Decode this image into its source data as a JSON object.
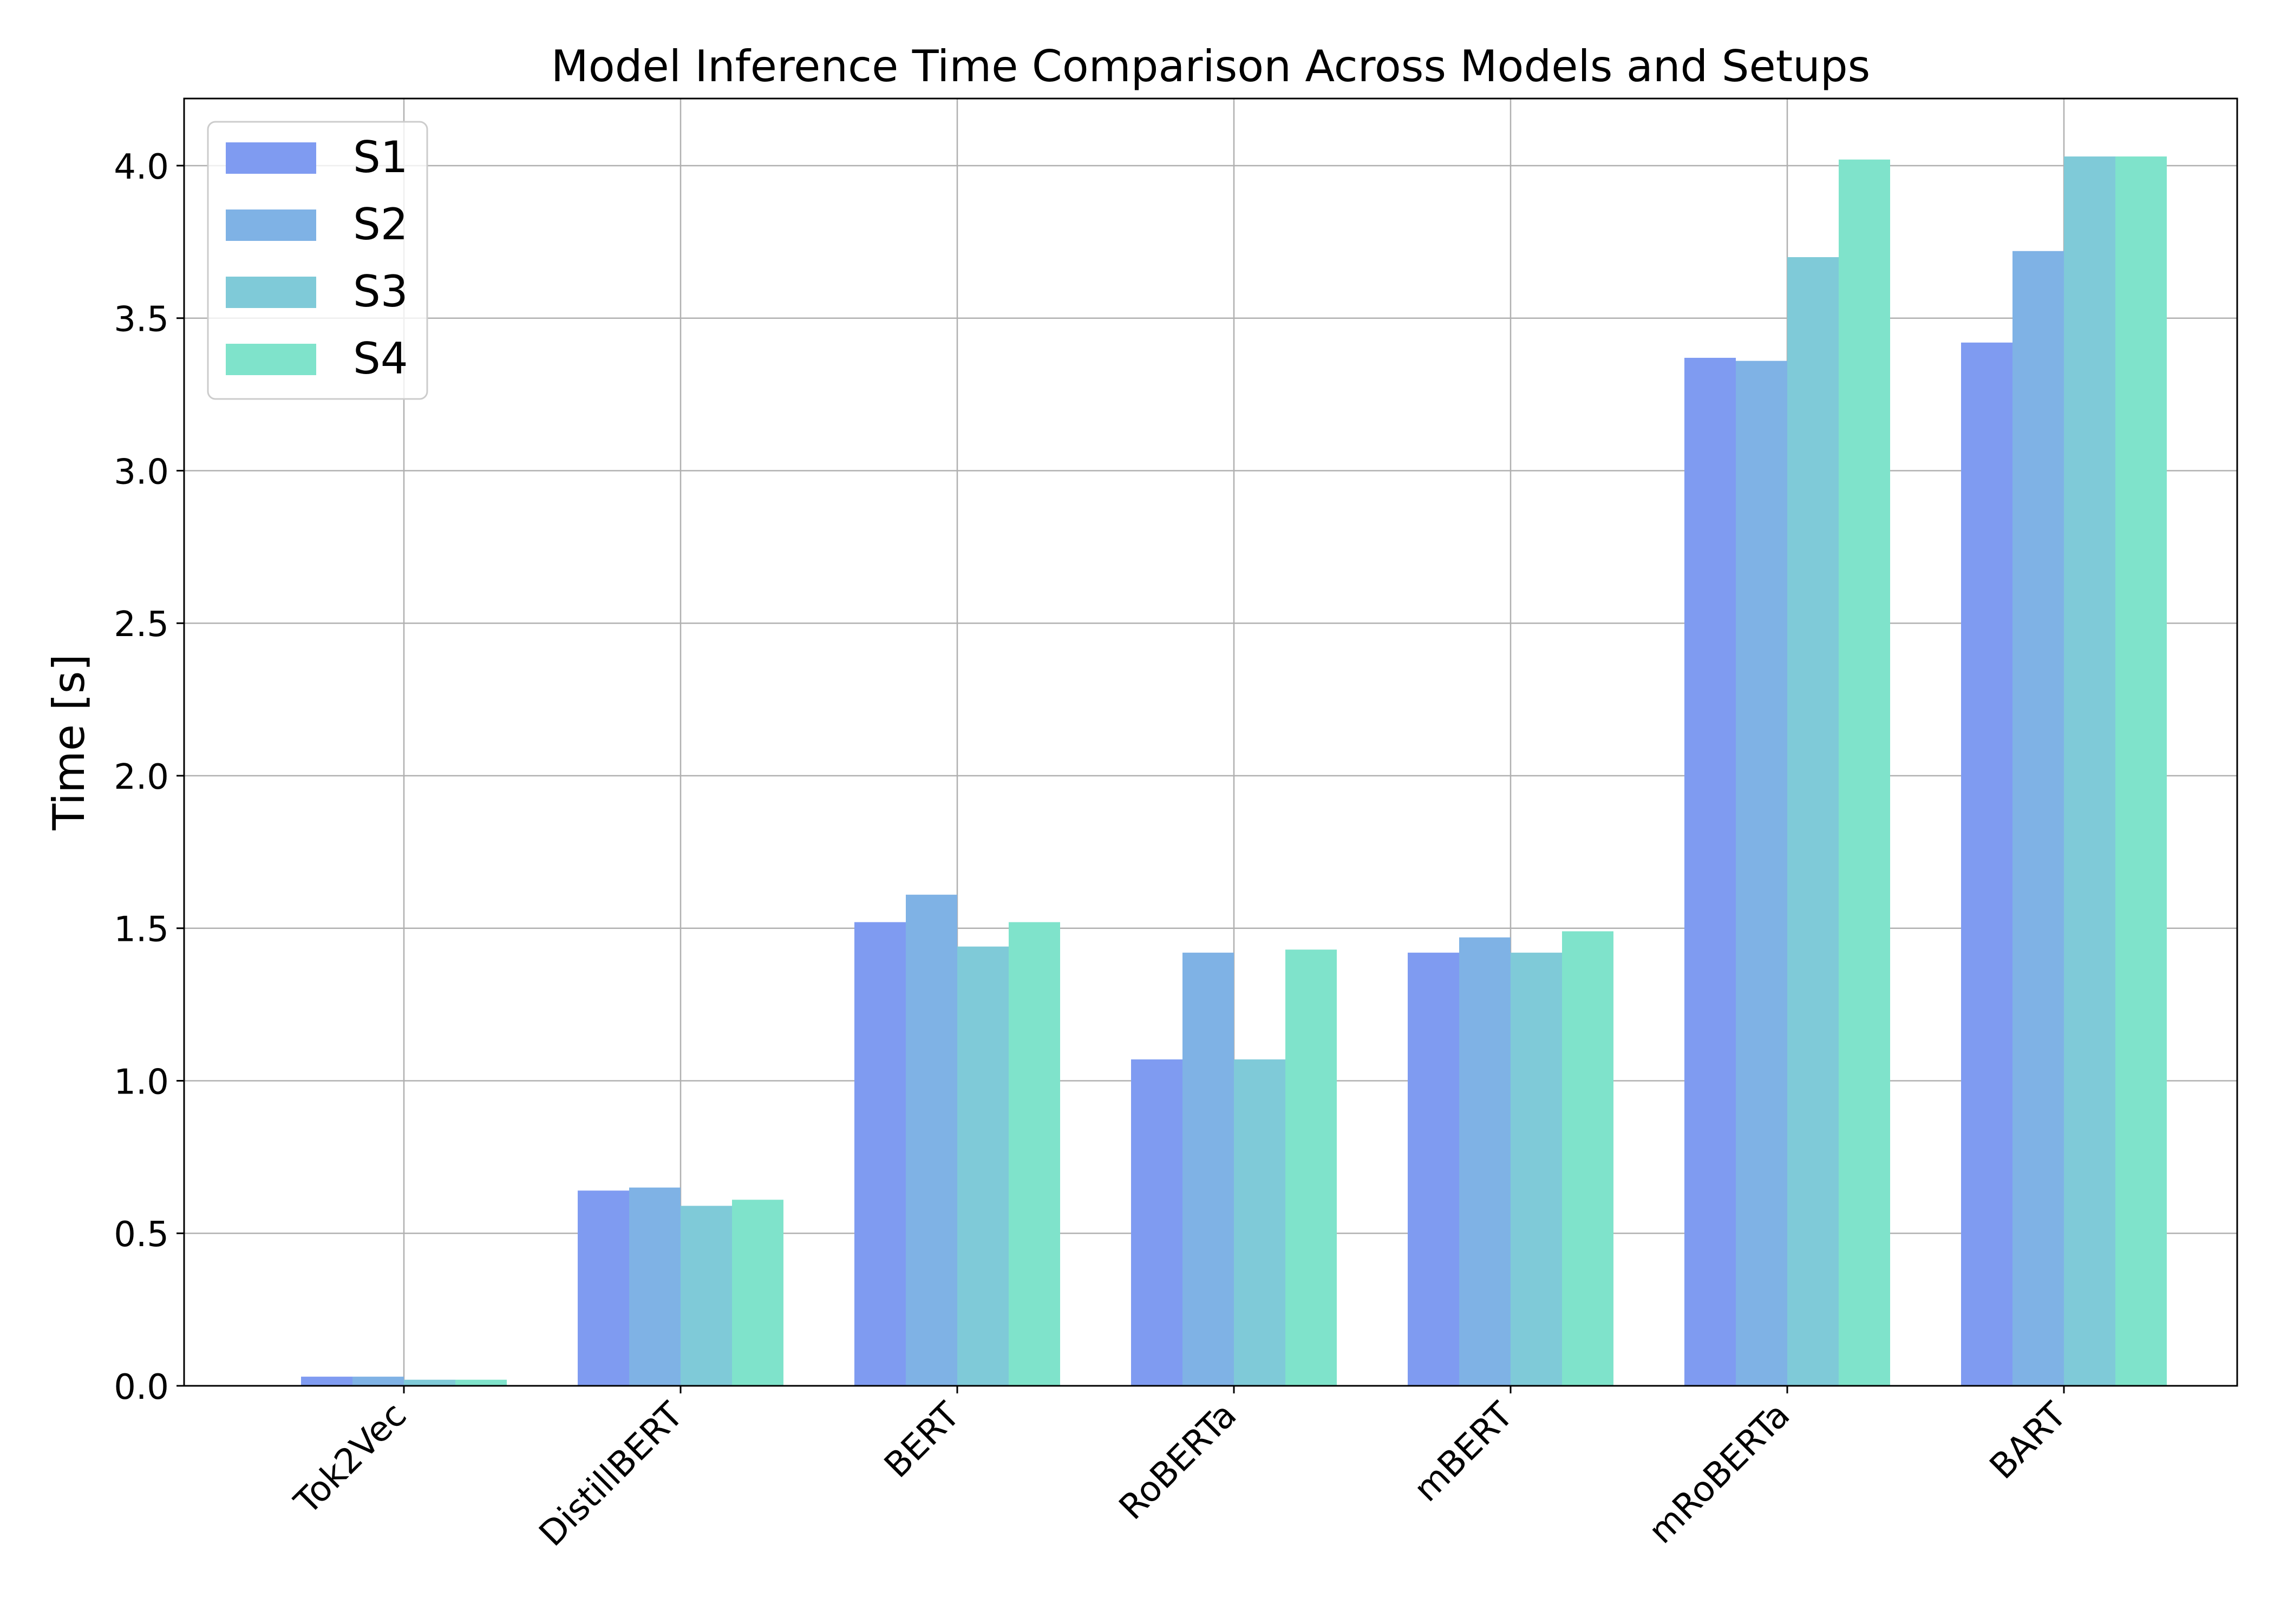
{
  "chart_data": {
    "type": "bar",
    "title": "Model Inference Time Comparison Across Models and Setups",
    "xlabel": "",
    "ylabel": "Time [s]",
    "categories": [
      "Tok2Vec",
      "DistillBERT",
      "BERT",
      "RoBERTa",
      "mBERT",
      "mRoBERTa",
      "BART"
    ],
    "series": [
      {
        "name": "S1",
        "color": "#7f9bf1",
        "values": [
          0.03,
          0.64,
          1.52,
          1.07,
          1.42,
          3.37,
          3.42
        ]
      },
      {
        "name": "S2",
        "color": "#7fb2e5",
        "values": [
          0.03,
          0.65,
          1.61,
          1.42,
          1.47,
          3.36,
          3.72
        ]
      },
      {
        "name": "S3",
        "color": "#7fcad8",
        "values": [
          0.02,
          0.59,
          1.44,
          1.07,
          1.42,
          3.7,
          4.03
        ]
      },
      {
        "name": "S4",
        "color": "#7fe3cb",
        "values": [
          0.02,
          0.61,
          1.52,
          1.43,
          1.49,
          4.02,
          4.03
        ]
      }
    ],
    "ylim": [
      0,
      4.22
    ],
    "yticks": [
      0.0,
      0.5,
      1.0,
      1.5,
      2.0,
      2.5,
      3.0,
      3.5,
      4.0
    ],
    "ytick_labels": [
      "0.0",
      "0.5",
      "1.0",
      "1.5",
      "2.0",
      "2.5",
      "3.0",
      "3.5",
      "4.0"
    ],
    "grid": true,
    "legend_position": "top-left"
  }
}
